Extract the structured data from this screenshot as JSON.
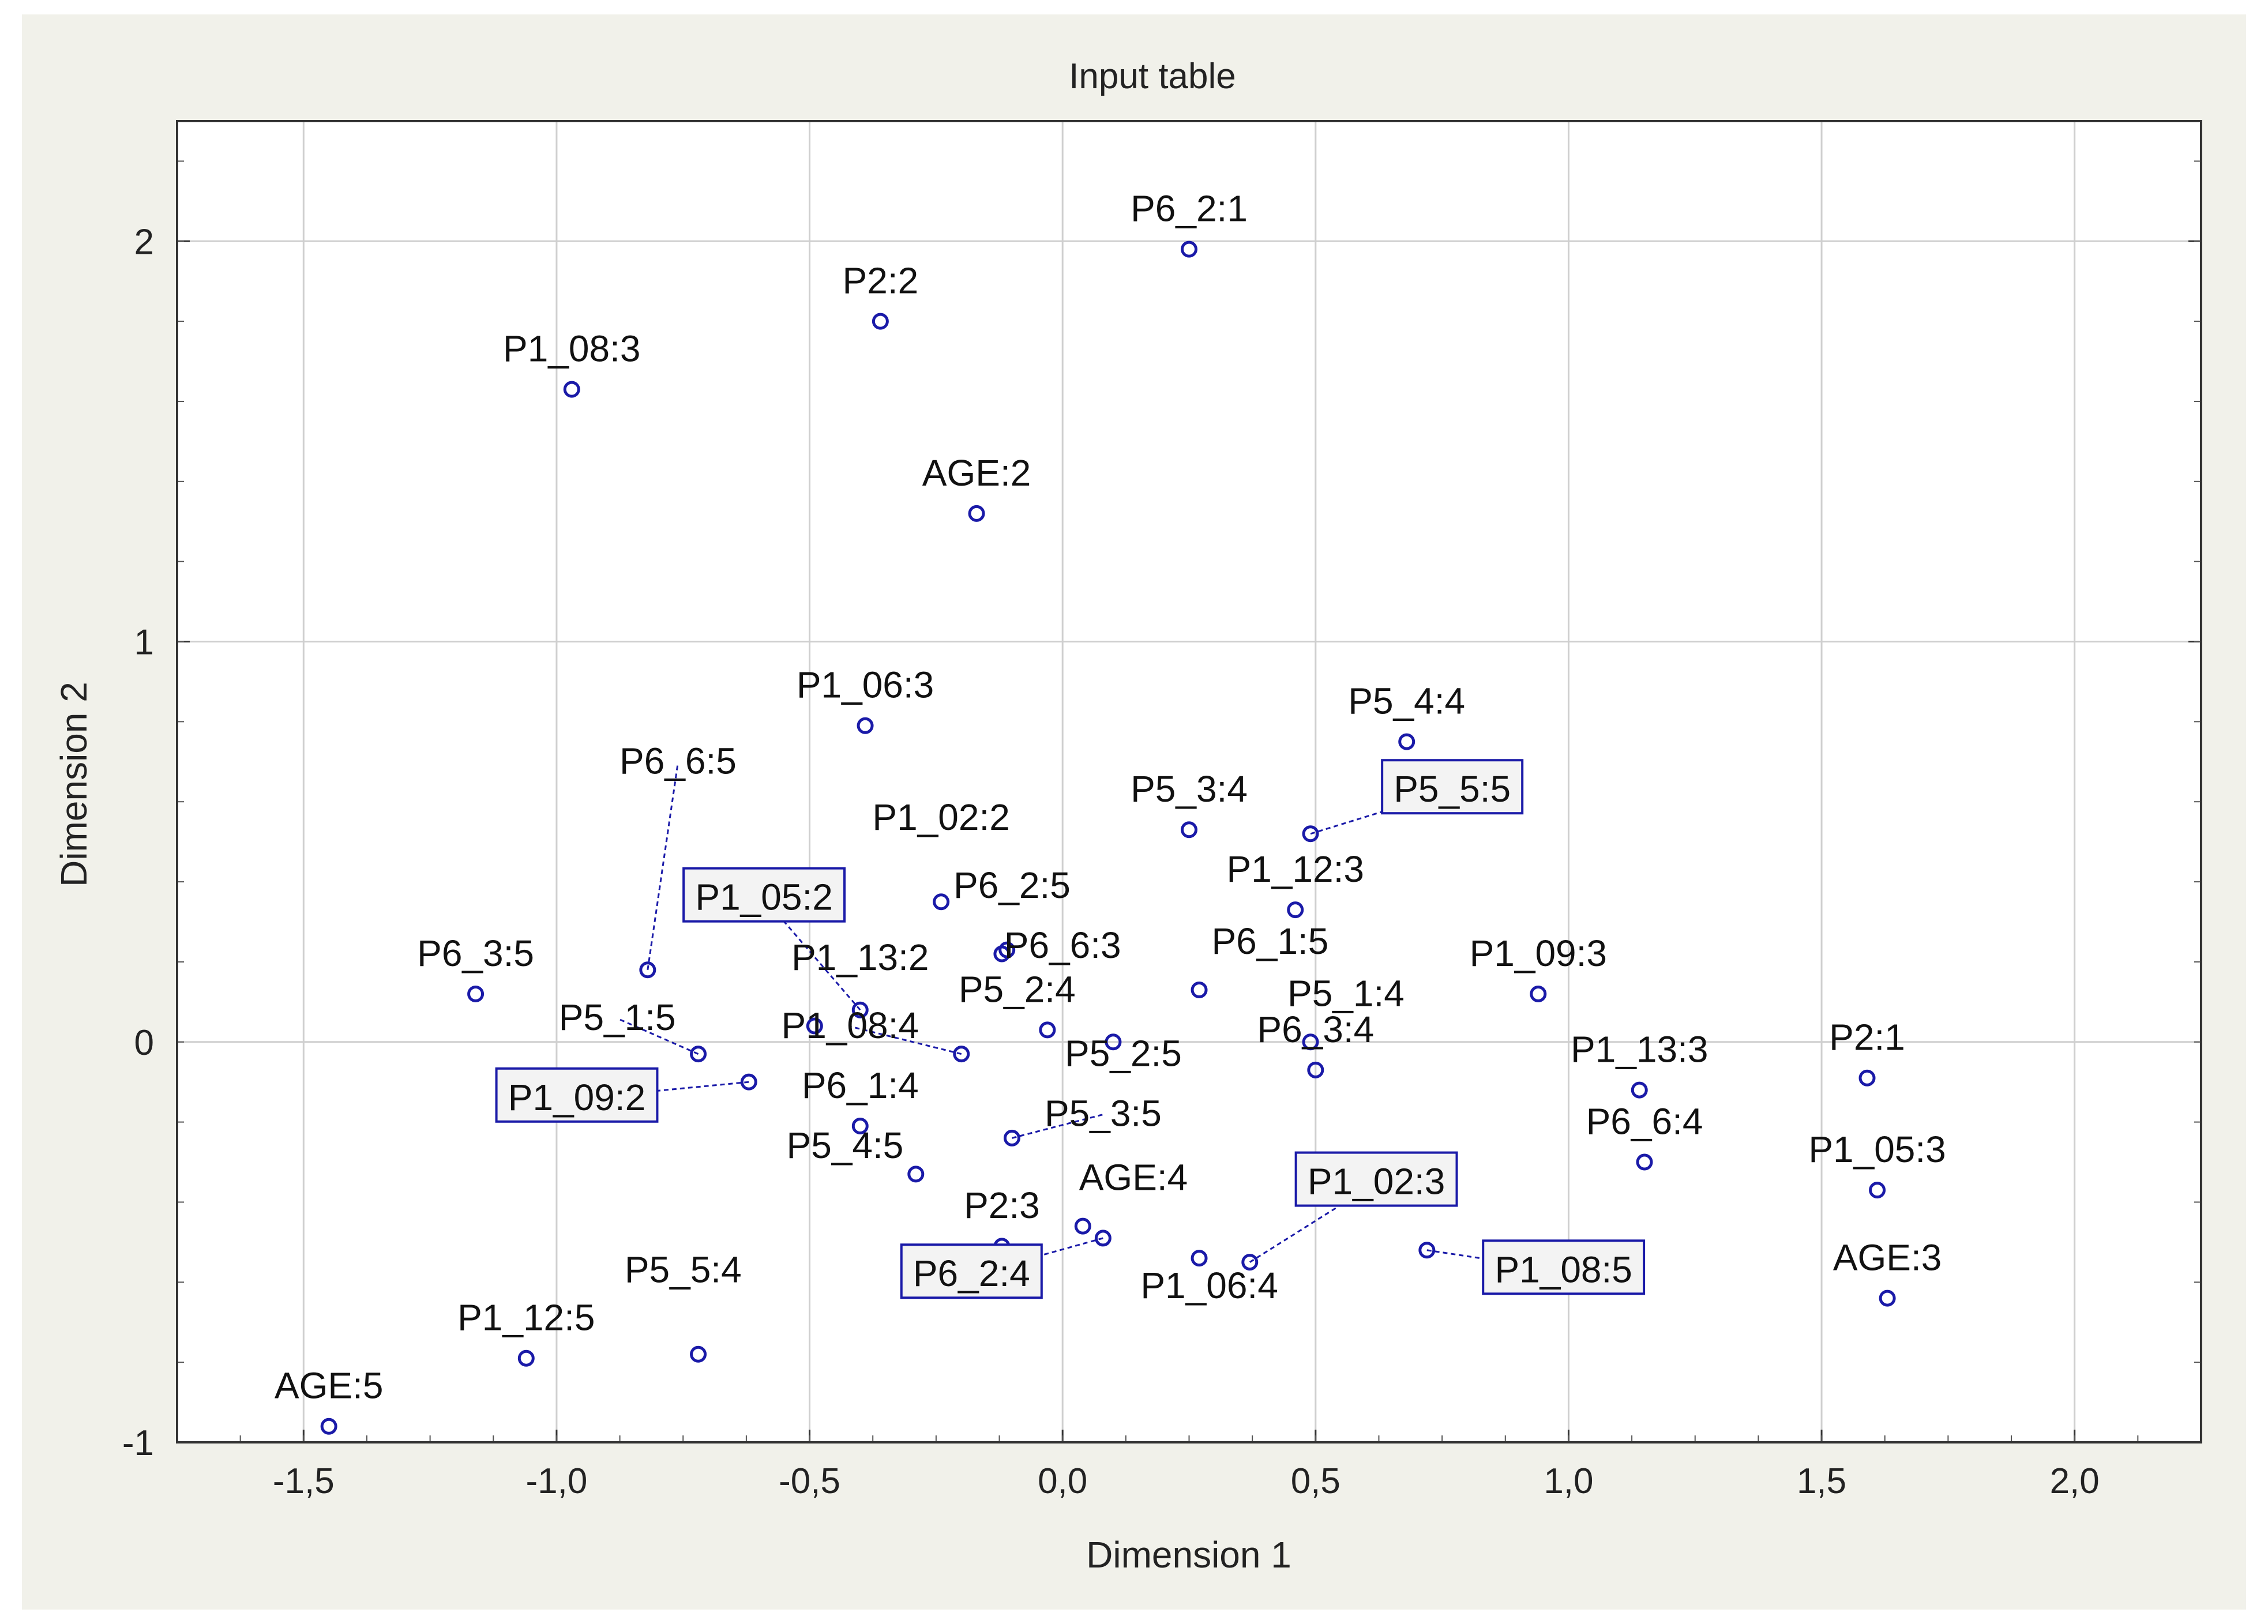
{
  "chart_data": {
    "type": "scatter",
    "title": "Input table",
    "xlabel": "Dimension 1",
    "ylabel": "Dimension 2",
    "xlim": [
      -1.75,
      2.25
    ],
    "ylim": [
      -1.0,
      2.3
    ],
    "x_ticks": [
      -1.5,
      -1.0,
      -0.5,
      0.0,
      0.5,
      1.0,
      1.5,
      2.0
    ],
    "x_tick_labels": [
      "-1,5",
      "-1,0",
      "-0,5",
      "0,0",
      "0,5",
      "1,0",
      "1,5",
      "2,0"
    ],
    "y_ticks": [
      -1,
      1,
      2
    ],
    "y_tick_labels": [
      "-1",
      "1",
      "2"
    ],
    "extra_y_tick": {
      "value": 0,
      "label": "0"
    },
    "grid": true,
    "marker_color": "#1a1aa8",
    "points": [
      {
        "label": "P6_2:1",
        "x": 0.25,
        "y": 1.98,
        "ldx": 0.0,
        "ldy": 0.07,
        "boxed": false
      },
      {
        "label": "P2:2",
        "x": -0.36,
        "y": 1.8,
        "ldx": 0.0,
        "ldy": 0.07,
        "boxed": false
      },
      {
        "label": "P1_08:3",
        "x": -0.97,
        "y": 1.63,
        "ldx": 0.0,
        "ldy": 0.07,
        "boxed": false
      },
      {
        "label": "AGE:2",
        "x": -0.17,
        "y": 1.32,
        "ldx": 0.0,
        "ldy": 0.07,
        "boxed": false
      },
      {
        "label": "P1_06:3",
        "x": -0.39,
        "y": 0.79,
        "ldx": 0.0,
        "ldy": 0.07,
        "boxed": false
      },
      {
        "label": "P5_4:4",
        "x": 0.68,
        "y": 0.75,
        "ldx": 0.0,
        "ldy": 0.07,
        "boxed": false
      },
      {
        "label": "P5_3:4",
        "x": 0.25,
        "y": 0.53,
        "ldx": 0.0,
        "ldy": 0.07,
        "boxed": false
      },
      {
        "label": "P5_5:5",
        "x": 0.49,
        "y": 0.52,
        "ldx": 0.28,
        "ldy": 0.08,
        "boxed": true
      },
      {
        "label": "P1_02:2",
        "x": -0.24,
        "y": 0.35,
        "ldx": 0.0,
        "ldy": 0.18,
        "boxed": false
      },
      {
        "label": "P6_2:5",
        "x": -0.12,
        "y": 0.22,
        "ldx": 0.02,
        "ldy": 0.14,
        "boxed": false
      },
      {
        "label": "P1_12:3",
        "x": 0.46,
        "y": 0.33,
        "ldx": 0.0,
        "ldy": 0.07,
        "boxed": false
      },
      {
        "label": "P6_6:5",
        "x": -0.82,
        "y": 0.18,
        "ldx": 0.06,
        "ldy": 0.49,
        "boxed": false
      },
      {
        "label": "P1_05:2",
        "x": -0.4,
        "y": 0.08,
        "ldx": -0.19,
        "ldy": 0.25,
        "boxed": true
      },
      {
        "label": "P6_6:3",
        "x": -0.11,
        "y": 0.23,
        "ldx": 0.11,
        "ldy": -0.02,
        "boxed": false
      },
      {
        "label": "P6_1:5",
        "x": 0.27,
        "y": 0.13,
        "ldx": 0.14,
        "ldy": 0.09,
        "boxed": false
      },
      {
        "label": "P6_3:5",
        "x": -1.16,
        "y": 0.12,
        "ldx": 0.0,
        "ldy": 0.07,
        "boxed": false
      },
      {
        "label": "P1_13:2",
        "x": -0.49,
        "y": 0.04,
        "ldx": 0.09,
        "ldy": 0.14,
        "boxed": false
      },
      {
        "label": "P1_09:3",
        "x": 0.94,
        "y": 0.12,
        "ldx": 0.0,
        "ldy": 0.07,
        "boxed": false
      },
      {
        "label": "P5_2:4",
        "x": -0.03,
        "y": 0.03,
        "ldx": -0.06,
        "ldy": 0.07,
        "boxed": false
      },
      {
        "label": "P5_1:4",
        "x": 0.49,
        "y": 0.0,
        "ldx": 0.07,
        "ldy": 0.09,
        "boxed": false
      },
      {
        "label": "P1_08:4",
        "x": -0.2,
        "y": -0.03,
        "ldx": -0.22,
        "ldy": 0.04,
        "boxed": false
      },
      {
        "label": "P5_1:5",
        "x": -0.72,
        "y": -0.03,
        "ldx": -0.16,
        "ldy": 0.06,
        "boxed": false
      },
      {
        "label": "P6_3:4",
        "x": 0.5,
        "y": -0.07,
        "ldx": 0.0,
        "ldy": 0.07,
        "boxed": false
      },
      {
        "label": "P5_2:5",
        "x": 0.1,
        "y": 0.0,
        "ldx": 0.02,
        "ldy": -0.06,
        "boxed": false
      },
      {
        "label": "P1_09:2",
        "x": -0.62,
        "y": -0.1,
        "ldx": -0.34,
        "ldy": -0.07,
        "boxed": true
      },
      {
        "label": "P1_13:3",
        "x": 1.14,
        "y": -0.12,
        "ldx": 0.0,
        "ldy": 0.07,
        "boxed": false
      },
      {
        "label": "P2:1",
        "x": 1.59,
        "y": -0.09,
        "ldx": 0.0,
        "ldy": 0.07,
        "boxed": false
      },
      {
        "label": "P6_1:4",
        "x": -0.4,
        "y": -0.21,
        "ldx": 0.0,
        "ldy": 0.07,
        "boxed": false
      },
      {
        "label": "P5_3:5",
        "x": -0.1,
        "y": -0.24,
        "ldx": 0.18,
        "ldy": 0.03,
        "boxed": false
      },
      {
        "label": "P6_6:4",
        "x": 1.15,
        "y": -0.3,
        "ldx": 0.0,
        "ldy": 0.07,
        "boxed": false
      },
      {
        "label": "P1_05:3",
        "x": 1.61,
        "y": -0.37,
        "ldx": 0.0,
        "ldy": 0.07,
        "boxed": false
      },
      {
        "label": "P5_4:5",
        "x": -0.29,
        "y": -0.33,
        "ldx": -0.14,
        "ldy": 0.04,
        "boxed": false
      },
      {
        "label": "AGE:4",
        "x": 0.04,
        "y": -0.46,
        "ldx": 0.1,
        "ldy": 0.09,
        "boxed": false
      },
      {
        "label": "P2:3",
        "x": -0.12,
        "y": -0.51,
        "ldx": 0.0,
        "ldy": 0.07,
        "boxed": false
      },
      {
        "label": "P1_02:3",
        "x": 0.37,
        "y": -0.55,
        "ldx": 0.25,
        "ldy": 0.17,
        "boxed": true
      },
      {
        "label": "P6_2:4",
        "x": 0.08,
        "y": -0.49,
        "ldx": -0.26,
        "ldy": -0.12,
        "boxed": true
      },
      {
        "label": "P1_06:4",
        "x": 0.27,
        "y": -0.54,
        "ldx": 0.02,
        "ldy": -0.1,
        "boxed": false
      },
      {
        "label": "P1_08:5",
        "x": 0.72,
        "y": -0.52,
        "ldx": 0.27,
        "ldy": -0.08,
        "boxed": true
      },
      {
        "label": "AGE:3",
        "x": 1.63,
        "y": -0.64,
        "ldx": 0.0,
        "ldy": 0.07,
        "boxed": false
      },
      {
        "label": "P5_5:4",
        "x": -0.72,
        "y": -0.78,
        "ldx": -0.03,
        "ldy": 0.18,
        "boxed": false
      },
      {
        "label": "P1_12:5",
        "x": -1.06,
        "y": -0.79,
        "ldx": 0.0,
        "ldy": 0.07,
        "boxed": false
      },
      {
        "label": "AGE:5",
        "x": -1.45,
        "y": -0.96,
        "ldx": 0.0,
        "ldy": 0.07,
        "boxed": false
      }
    ]
  }
}
